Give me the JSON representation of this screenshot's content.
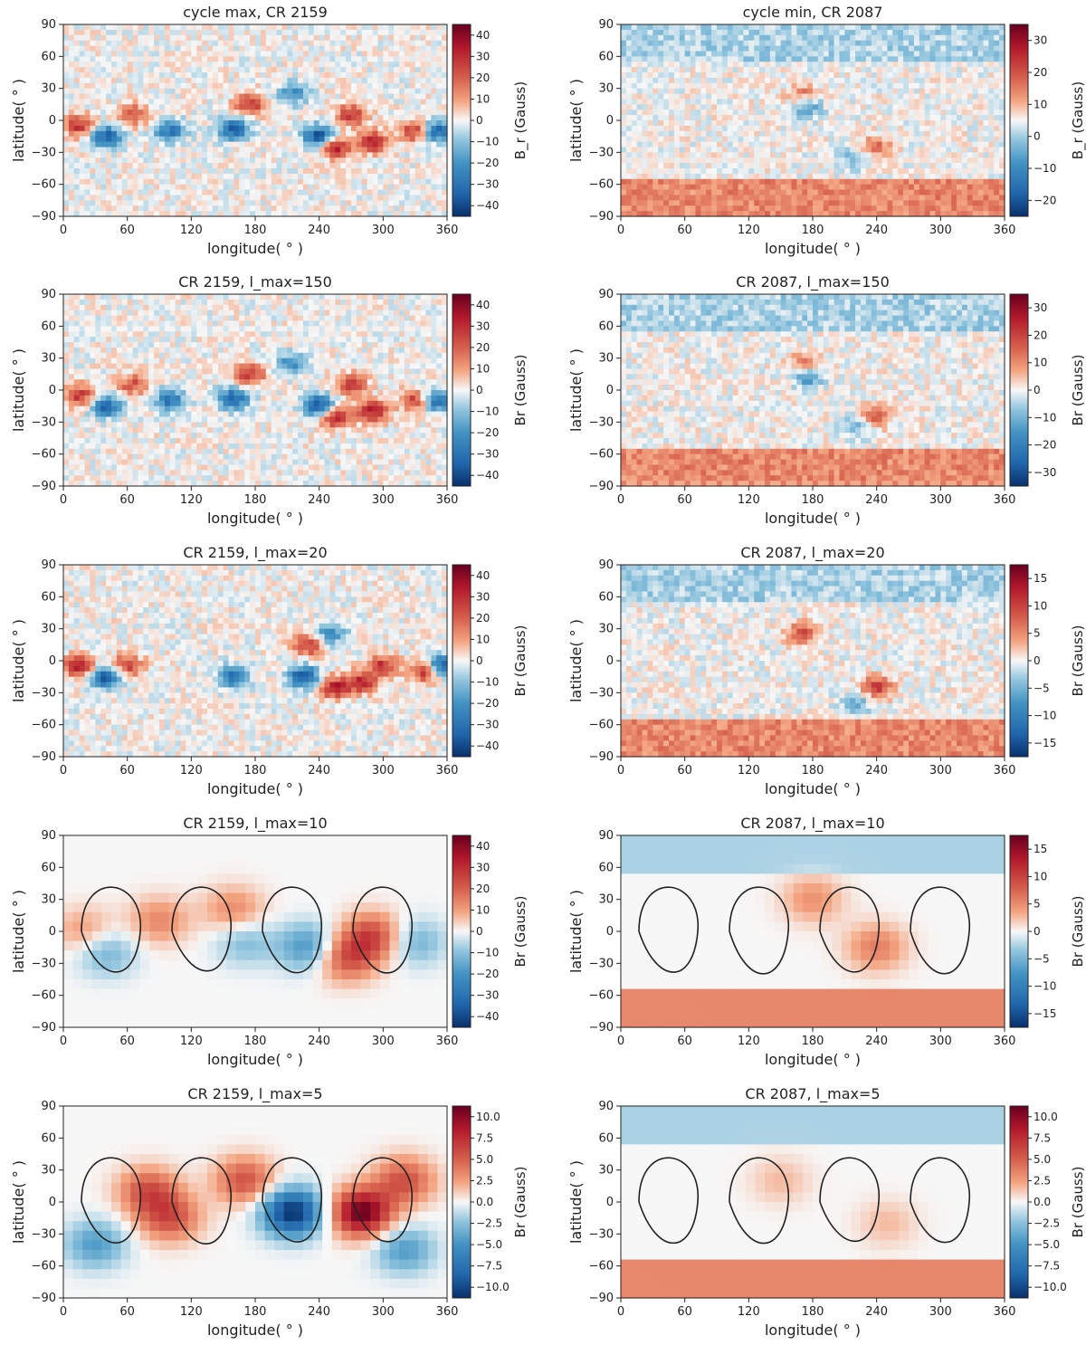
{
  "colors": {
    "neg": "#08306b",
    "mid": "#f7f7f7",
    "pos": "#67001f",
    "contour": "#222222"
  },
  "chart_data": [
    {
      "type": "heatmap",
      "title": "cycle max, CR 2159",
      "xlabel": "longitude( ° )",
      "ylabel": "latitude( ° )",
      "xlim": [
        0,
        360
      ],
      "ylim": [
        -90,
        90
      ],
      "xticks": [
        "0",
        "60",
        "120",
        "180",
        "240",
        "300",
        "360"
      ],
      "yticks": [
        "90",
        "60",
        "30",
        "0",
        "−30",
        "−60",
        "−90"
      ],
      "colorbar": {
        "label": "B_r (Gauss)",
        "ticks": [
          "40",
          "30",
          "20",
          "10",
          "0",
          "−10",
          "−20",
          "−30",
          "−40"
        ],
        "range": [
          -40,
          40
        ]
      },
      "features": {
        "active_band": [
          -35,
          35
        ],
        "polar_sign": 0,
        "blobs": [
          [
            15,
            -5,
            25
          ],
          [
            40,
            -15,
            -30
          ],
          [
            65,
            5,
            20
          ],
          [
            100,
            -10,
            -25
          ],
          [
            160,
            -8,
            -30
          ],
          [
            175,
            15,
            25
          ],
          [
            215,
            25,
            -20
          ],
          [
            240,
            -15,
            -35
          ],
          [
            255,
            -25,
            30
          ],
          [
            270,
            5,
            25
          ],
          [
            290,
            -20,
            30
          ],
          [
            330,
            -10,
            25
          ],
          [
            350,
            -10,
            -30
          ]
        ],
        "contour": false
      }
    },
    {
      "type": "heatmap",
      "title": "cycle min, CR 2087",
      "xlabel": "longitude( ° )",
      "ylabel": "latitude( ° )",
      "xlim": [
        0,
        360
      ],
      "ylim": [
        -90,
        90
      ],
      "xticks": [
        "0",
        "60",
        "120",
        "180",
        "240",
        "300",
        "360"
      ],
      "yticks": [
        "90",
        "60",
        "30",
        "0",
        "−30",
        "−60",
        "−90"
      ],
      "colorbar": {
        "label": "B_r (Gauss)",
        "ticks": [
          "30",
          "20",
          "10",
          "0",
          "−10",
          "−20"
        ],
        "range": [
          -30,
          30
        ]
      },
      "features": {
        "active_band": [
          -30,
          30
        ],
        "polar_sign": 1,
        "blobs": [
          [
            170,
            25,
            10
          ],
          [
            175,
            12,
            -12
          ],
          [
            240,
            -25,
            12
          ],
          [
            220,
            -35,
            -8
          ]
        ],
        "contour": false
      }
    },
    {
      "type": "heatmap",
      "title": "CR 2159, l_max=150",
      "xlabel": "longitude( ° )",
      "ylabel": "latitude( ° )",
      "xlim": [
        0,
        360
      ],
      "ylim": [
        -90,
        90
      ],
      "xticks": [
        "0",
        "60",
        "120",
        "180",
        "240",
        "300",
        "360"
      ],
      "yticks": [
        "90",
        "60",
        "30",
        "0",
        "−30",
        "−60",
        "−90"
      ],
      "colorbar": {
        "label": "Br (Gauss)",
        "ticks": [
          "40",
          "30",
          "20",
          "10",
          "0",
          "−10",
          "−20",
          "−30",
          "−40"
        ],
        "range": [
          -40,
          40
        ]
      },
      "features": {
        "active_band": [
          -35,
          35
        ],
        "polar_sign": 0,
        "blobs": [
          [
            15,
            -5,
            25
          ],
          [
            40,
            -15,
            -30
          ],
          [
            65,
            5,
            20
          ],
          [
            100,
            -10,
            -25
          ],
          [
            160,
            -8,
            -30
          ],
          [
            175,
            15,
            25
          ],
          [
            215,
            25,
            -20
          ],
          [
            240,
            -15,
            -35
          ],
          [
            255,
            -25,
            30
          ],
          [
            270,
            5,
            25
          ],
          [
            290,
            -20,
            30
          ],
          [
            330,
            -10,
            25
          ],
          [
            350,
            -10,
            -30
          ]
        ],
        "contour": false
      }
    },
    {
      "type": "heatmap",
      "title": "CR 2087, l_max=150",
      "xlabel": "longitude( ° )",
      "ylabel": "latitude( ° )",
      "xlim": [
        0,
        360
      ],
      "ylim": [
        -90,
        90
      ],
      "xticks": [
        "0",
        "60",
        "120",
        "180",
        "240",
        "300",
        "360"
      ],
      "yticks": [
        "90",
        "60",
        "30",
        "0",
        "−30",
        "−60",
        "−90"
      ],
      "colorbar": {
        "label": "Br (Gauss)",
        "ticks": [
          "30",
          "20",
          "10",
          "0",
          "−10",
          "−20",
          "−30"
        ],
        "range": [
          -30,
          30
        ]
      },
      "features": {
        "active_band": [
          -30,
          30
        ],
        "polar_sign": 1,
        "blobs": [
          [
            170,
            25,
            10
          ],
          [
            175,
            12,
            -12
          ],
          [
            240,
            -25,
            12
          ],
          [
            220,
            -35,
            -8
          ]
        ],
        "contour": false
      }
    },
    {
      "type": "heatmap",
      "title": "CR 2159, l_max=20",
      "xlabel": "longitude( ° )",
      "ylabel": "latitude( ° )",
      "xlim": [
        0,
        360
      ],
      "ylim": [
        -90,
        90
      ],
      "xticks": [
        "0",
        "60",
        "120",
        "180",
        "240",
        "300",
        "360"
      ],
      "yticks": [
        "90",
        "60",
        "30",
        "0",
        "−30",
        "−60",
        "−90"
      ],
      "colorbar": {
        "label": "Br (Gauss)",
        "ticks": [
          "40",
          "30",
          "20",
          "10",
          "0",
          "−10",
          "−20",
          "−30",
          "−40"
        ],
        "range": [
          -40,
          40
        ]
      },
      "features": {
        "active_band": [
          -30,
          30
        ],
        "polar_sign": 0,
        "blobs": [
          [
            15,
            -5,
            30
          ],
          [
            40,
            -15,
            -35
          ],
          [
            60,
            -5,
            25
          ],
          [
            160,
            -15,
            -28
          ],
          [
            225,
            -15,
            -35
          ],
          [
            255,
            -25,
            30
          ],
          [
            280,
            -20,
            28
          ],
          [
            300,
            -5,
            25
          ],
          [
            340,
            -10,
            28
          ],
          [
            355,
            -5,
            -35
          ],
          [
            230,
            15,
            25
          ],
          [
            250,
            25,
            -20
          ]
        ],
        "contour": false
      }
    },
    {
      "type": "heatmap",
      "title": "CR 2087, l_max=20",
      "xlabel": "longitude( ° )",
      "ylabel": "latitude( ° )",
      "xlim": [
        0,
        360
      ],
      "ylim": [
        -90,
        90
      ],
      "xticks": [
        "0",
        "60",
        "120",
        "180",
        "240",
        "300",
        "360"
      ],
      "yticks": [
        "90",
        "60",
        "30",
        "0",
        "−30",
        "−60",
        "−90"
      ],
      "colorbar": {
        "label": "Br (Gauss)",
        "ticks": [
          "15",
          "10",
          "5",
          "0",
          "−5",
          "−10",
          "−15"
        ],
        "range": [
          -15,
          15
        ]
      },
      "features": {
        "active_band": [
          -30,
          30
        ],
        "polar_sign": 1,
        "blobs": [
          [
            170,
            25,
            8
          ],
          [
            240,
            -25,
            9
          ],
          [
            220,
            -40,
            -5
          ]
        ],
        "contour": false
      }
    },
    {
      "type": "heatmap",
      "title": "CR 2159, l_max=10",
      "xlabel": "longitude( ° )",
      "ylabel": "latitude( ° )",
      "xlim": [
        0,
        360
      ],
      "ylim": [
        -90,
        90
      ],
      "xticks": [
        "0",
        "60",
        "120",
        "180",
        "240",
        "300",
        "360"
      ],
      "yticks": [
        "90",
        "60",
        "30",
        "0",
        "−30",
        "−60",
        "−90"
      ],
      "colorbar": {
        "label": "Br (Gauss)",
        "ticks": [
          "40",
          "30",
          "20",
          "10",
          "0",
          "−10",
          "−20",
          "−30",
          "−40"
        ],
        "range": [
          -40,
          40
        ]
      },
      "features": {
        "active_band": [
          -30,
          30
        ],
        "polar_sign": 0,
        "blobs": [
          [
            20,
            0,
            10
          ],
          [
            40,
            -20,
            -12
          ],
          [
            90,
            10,
            12
          ],
          [
            160,
            20,
            12
          ],
          [
            170,
            -10,
            -10
          ],
          [
            230,
            -15,
            -18
          ],
          [
            265,
            -25,
            20
          ],
          [
            290,
            -5,
            22
          ],
          [
            330,
            -10,
            -12
          ]
        ],
        "contour": true
      }
    },
    {
      "type": "heatmap",
      "title": "CR 2087, l_max=10",
      "xlabel": "longitude( ° )",
      "ylabel": "latitude( ° )",
      "xlim": [
        0,
        360
      ],
      "ylim": [
        -90,
        90
      ],
      "xticks": [
        "0",
        "60",
        "120",
        "180",
        "240",
        "300",
        "360"
      ],
      "yticks": [
        "90",
        "60",
        "30",
        "0",
        "−30",
        "−60",
        "−90"
      ],
      "colorbar": {
        "label": "Br (Gauss)",
        "ticks": [
          "15",
          "10",
          "5",
          "0",
          "−5",
          "−10",
          "−15"
        ],
        "range": [
          -15,
          15
        ]
      },
      "features": {
        "active_band": [
          -30,
          30
        ],
        "polar_sign": 1,
        "blobs": [
          [
            240,
            -15,
            5
          ],
          [
            180,
            30,
            4
          ]
        ],
        "contour": true
      }
    },
    {
      "type": "heatmap",
      "title": "CR 2159, l_max=5",
      "xlabel": "longitude( ° )",
      "ylabel": "latitude( ° )",
      "xlim": [
        0,
        360
      ],
      "ylim": [
        -90,
        90
      ],
      "xticks": [
        "0",
        "60",
        "120",
        "180",
        "240",
        "300",
        "360"
      ],
      "yticks": [
        "90",
        "60",
        "30",
        "0",
        "−30",
        "−60",
        "−90"
      ],
      "colorbar": {
        "label": "Br (Gauss)",
        "ticks": [
          "10.0",
          "7.5",
          "5.0",
          "2.5",
          "0.0",
          "−2.5",
          "−5.0",
          "−7.5",
          "−10.0"
        ],
        "range": [
          -10,
          10
        ]
      },
      "features": {
        "active_band": [
          -30,
          30
        ],
        "polar_sign": 0,
        "blobs": [
          [
            80,
            10,
            5
          ],
          [
            100,
            -15,
            5
          ],
          [
            170,
            20,
            5
          ],
          [
            30,
            -40,
            -4
          ],
          [
            215,
            -10,
            -10
          ],
          [
            280,
            -10,
            10
          ],
          [
            320,
            20,
            5
          ],
          [
            320,
            -45,
            -4
          ]
        ],
        "contour": true
      }
    },
    {
      "type": "heatmap",
      "title": "CR 2087, l_max=5",
      "xlabel": "longitude( ° )",
      "ylabel": "latitude( ° )",
      "xlim": [
        0,
        360
      ],
      "ylim": [
        -90,
        90
      ],
      "xticks": [
        "0",
        "60",
        "120",
        "180",
        "240",
        "300",
        "360"
      ],
      "yticks": [
        "90",
        "60",
        "30",
        "0",
        "−30",
        "−60",
        "−90"
      ],
      "colorbar": {
        "label": "Br (Gauss)",
        "ticks": [
          "10.0",
          "7.5",
          "5.0",
          "2.5",
          "0.0",
          "−2.5",
          "−5.0",
          "−7.5",
          "−10.0"
        ],
        "range": [
          -10,
          10
        ]
      },
      "features": {
        "active_band": [
          -30,
          30
        ],
        "polar_sign": 1,
        "blobs": [
          [
            250,
            -20,
            1.5
          ],
          [
            150,
            20,
            1.5
          ]
        ],
        "contour": true
      }
    }
  ]
}
